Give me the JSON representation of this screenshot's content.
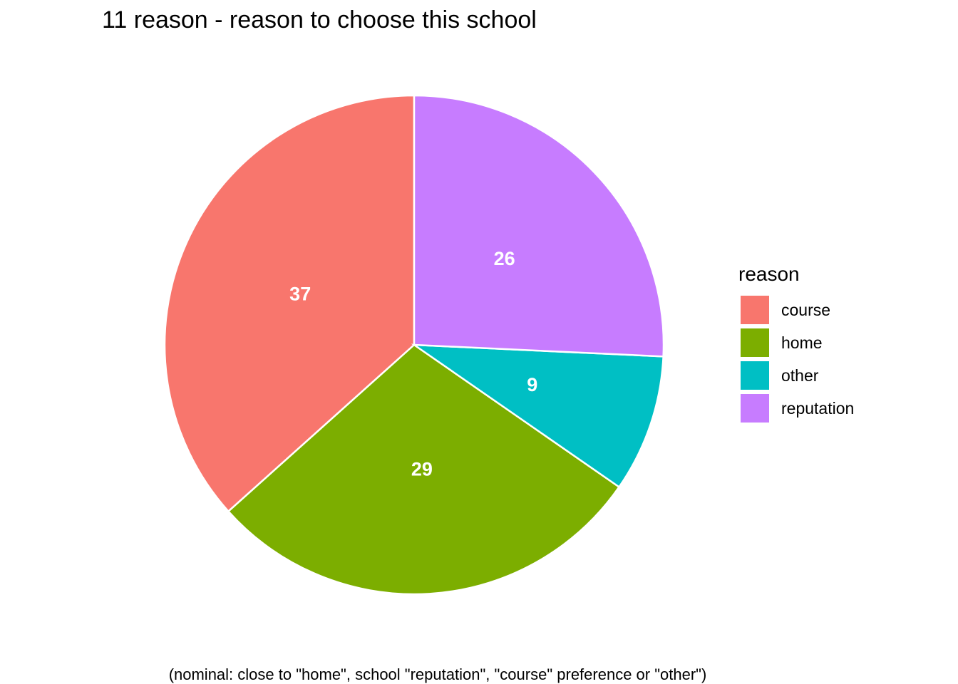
{
  "chart_data": {
    "type": "pie",
    "title": "11 reason - reason to choose this school",
    "caption": "(nominal: close to \"home\", school \"reputation\", \"course\" preference or \"other\")",
    "legend_title": "reason",
    "legend_position": "right",
    "categories": [
      "course",
      "home",
      "other",
      "reputation"
    ],
    "values": [
      37,
      29,
      9,
      26
    ],
    "colors": [
      "#F8766D",
      "#7CAE00",
      "#00BFC4",
      "#C77CFF"
    ]
  }
}
